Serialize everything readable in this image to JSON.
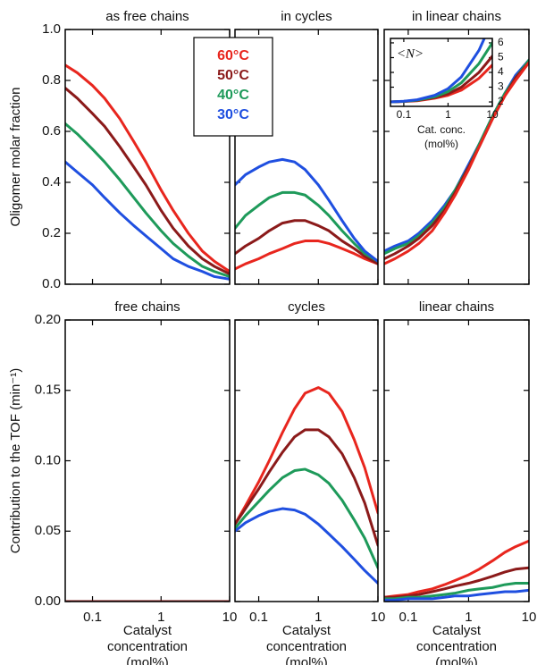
{
  "chart_data": [
    {
      "type": "line",
      "title": "as free chains",
      "ylabel": "Oligomer molar fraction",
      "x": [
        0.04,
        0.06,
        0.1,
        0.15,
        0.25,
        0.4,
        0.6,
        1,
        1.5,
        2.5,
        4,
        6,
        10
      ],
      "xscale": "log",
      "xlim": [
        0.04,
        10
      ],
      "xticks": [
        0.1,
        1,
        10
      ],
      "show_xticklabels": false,
      "ylim": [
        0,
        1
      ],
      "yticks": [
        {
          "value": 0,
          "label": "0.0"
        },
        0.2,
        0.4,
        0.6,
        0.8,
        {
          "value": 1,
          "label": "1.0"
        }
      ],
      "show_yticklabels": true,
      "series": [
        {
          "color": "#e8261e",
          "values": [
            0.86,
            0.83,
            0.78,
            0.73,
            0.65,
            0.56,
            0.48,
            0.37,
            0.29,
            0.2,
            0.13,
            0.09,
            0.05
          ]
        },
        {
          "color": "#8b1a1a",
          "values": [
            0.77,
            0.73,
            0.67,
            0.62,
            0.54,
            0.46,
            0.39,
            0.29,
            0.22,
            0.15,
            0.1,
            0.07,
            0.04
          ]
        },
        {
          "color": "#1e9a5a",
          "values": [
            0.63,
            0.59,
            0.53,
            0.48,
            0.41,
            0.34,
            0.28,
            0.21,
            0.16,
            0.11,
            0.07,
            0.05,
            0.03
          ]
        },
        {
          "color": "#1f4fe0",
          "values": [
            0.48,
            0.44,
            0.39,
            0.34,
            0.28,
            0.23,
            0.19,
            0.14,
            0.1,
            0.07,
            0.05,
            0.03,
            0.02
          ]
        }
      ]
    },
    {
      "type": "line",
      "title": "in cycles",
      "legend": "upper left",
      "x": [
        0.04,
        0.06,
        0.1,
        0.15,
        0.25,
        0.4,
        0.6,
        1,
        1.5,
        2.5,
        4,
        6,
        10
      ],
      "xscale": "log",
      "xlim": [
        0.04,
        10
      ],
      "xticks": [
        0.1,
        1,
        10
      ],
      "show_xticklabels": false,
      "ylim": [
        0,
        1
      ],
      "yticks": [
        0,
        0.2,
        0.4,
        0.6,
        0.8,
        1
      ],
      "show_yticklabels": false,
      "series": [
        {
          "name": "60°C",
          "color": "#e8261e",
          "values": [
            0.06,
            0.08,
            0.1,
            0.12,
            0.14,
            0.16,
            0.17,
            0.17,
            0.16,
            0.14,
            0.12,
            0.1,
            0.08
          ]
        },
        {
          "name": "50°C",
          "color": "#8b1a1a",
          "values": [
            0.12,
            0.15,
            0.18,
            0.21,
            0.24,
            0.25,
            0.25,
            0.23,
            0.21,
            0.17,
            0.14,
            0.11,
            0.08
          ]
        },
        {
          "name": "40°C",
          "color": "#1e9a5a",
          "values": [
            0.22,
            0.27,
            0.31,
            0.34,
            0.36,
            0.36,
            0.35,
            0.31,
            0.27,
            0.21,
            0.16,
            0.12,
            0.09
          ]
        },
        {
          "name": "30°C",
          "color": "#1f4fe0",
          "values": [
            0.39,
            0.43,
            0.46,
            0.48,
            0.49,
            0.48,
            0.45,
            0.39,
            0.33,
            0.25,
            0.18,
            0.13,
            0.09
          ]
        }
      ]
    },
    {
      "type": "line",
      "title": "in linear chains",
      "x": [
        0.04,
        0.06,
        0.1,
        0.15,
        0.25,
        0.4,
        0.6,
        1,
        1.5,
        2.5,
        4,
        6,
        10
      ],
      "xscale": "log",
      "xlim": [
        0.04,
        10
      ],
      "xticks": [
        0.1,
        1,
        10
      ],
      "show_xticklabels": false,
      "ylim": [
        0,
        1
      ],
      "yticks": [
        0,
        0.2,
        0.4,
        0.6,
        0.8,
        1
      ],
      "show_yticklabels": false,
      "series": [
        {
          "color": "#1f4fe0",
          "values": [
            0.13,
            0.15,
            0.17,
            0.2,
            0.25,
            0.31,
            0.37,
            0.47,
            0.55,
            0.66,
            0.75,
            0.82,
            0.88
          ]
        },
        {
          "color": "#1e9a5a",
          "values": [
            0.12,
            0.14,
            0.16,
            0.19,
            0.24,
            0.3,
            0.37,
            0.46,
            0.55,
            0.66,
            0.75,
            0.81,
            0.88
          ]
        },
        {
          "color": "#8b1a1a",
          "values": [
            0.1,
            0.12,
            0.15,
            0.18,
            0.23,
            0.29,
            0.36,
            0.46,
            0.54,
            0.65,
            0.74,
            0.81,
            0.87
          ]
        },
        {
          "color": "#e8261e",
          "values": [
            0.08,
            0.1,
            0.13,
            0.16,
            0.21,
            0.28,
            0.35,
            0.45,
            0.54,
            0.65,
            0.74,
            0.8,
            0.87
          ]
        }
      ]
    },
    {
      "type": "line",
      "title": "free chains",
      "ylabel": "Contribution to the TOF (min⁻¹)",
      "xlabel": [
        "Catalyst",
        "concentration",
        "(mol%)"
      ],
      "x": [
        0.04,
        0.06,
        0.1,
        0.15,
        0.25,
        0.4,
        0.6,
        1,
        1.5,
        2.5,
        4,
        6,
        10
      ],
      "xscale": "log",
      "xlim": [
        0.04,
        10
      ],
      "xticks": [
        0.1,
        1,
        10
      ],
      "show_xticklabels": true,
      "ylim": [
        0,
        0.2
      ],
      "yticks": [
        {
          "value": 0,
          "label": "0.00"
        },
        0.05,
        {
          "value": 0.1,
          "label": "0.10"
        },
        0.15,
        {
          "value": 0.2,
          "label": "0.20"
        }
      ],
      "show_yticklabels": true,
      "series": [
        {
          "color": "#1f4fe0",
          "values": [
            0,
            0,
            0,
            0,
            0,
            0,
            0,
            0,
            0,
            0,
            0,
            0,
            0
          ]
        },
        {
          "color": "#1e9a5a",
          "values": [
            0,
            0,
            0,
            0,
            0,
            0,
            0,
            0,
            0,
            0,
            0,
            0,
            0
          ]
        },
        {
          "color": "#e8261e",
          "values": [
            0,
            0,
            0,
            0,
            0,
            0,
            0,
            0,
            0,
            0,
            0,
            0,
            0
          ]
        },
        {
          "color": "#8b1a1a",
          "values": [
            0,
            0,
            0,
            0,
            0,
            0,
            0,
            0,
            0,
            0,
            0,
            0,
            0
          ]
        }
      ]
    },
    {
      "type": "line",
      "title": "cycles",
      "xlabel": [
        "Catalyst",
        "concentration",
        "(mol%)"
      ],
      "x": [
        0.04,
        0.06,
        0.1,
        0.15,
        0.25,
        0.4,
        0.6,
        1,
        1.5,
        2.5,
        4,
        6,
        10
      ],
      "xscale": "log",
      "xlim": [
        0.04,
        10
      ],
      "xticks": [
        0.1,
        1,
        10
      ],
      "show_xticklabels": true,
      "ylim": [
        0,
        0.2
      ],
      "yticks": [
        0,
        0.05,
        0.1,
        0.15,
        0.2
      ],
      "show_yticklabels": false,
      "series": [
        {
          "color": "#e8261e",
          "values": [
            0.055,
            0.068,
            0.085,
            0.1,
            0.12,
            0.137,
            0.148,
            0.152,
            0.148,
            0.135,
            0.115,
            0.095,
            0.063
          ]
        },
        {
          "color": "#8b1a1a",
          "values": [
            0.055,
            0.066,
            0.08,
            0.092,
            0.106,
            0.117,
            0.122,
            0.122,
            0.117,
            0.105,
            0.088,
            0.07,
            0.04
          ]
        },
        {
          "color": "#1e9a5a",
          "values": [
            0.052,
            0.061,
            0.071,
            0.079,
            0.088,
            0.093,
            0.094,
            0.09,
            0.084,
            0.072,
            0.058,
            0.045,
            0.024
          ]
        },
        {
          "color": "#1f4fe0",
          "values": [
            0.05,
            0.056,
            0.061,
            0.064,
            0.066,
            0.065,
            0.062,
            0.055,
            0.048,
            0.039,
            0.03,
            0.022,
            0.013
          ]
        }
      ]
    },
    {
      "type": "line",
      "title": "linear chains",
      "xlabel": [
        "Catalyst",
        "concentration",
        "(mol%)"
      ],
      "x": [
        0.04,
        0.06,
        0.1,
        0.15,
        0.25,
        0.4,
        0.6,
        1,
        1.5,
        2.5,
        4,
        6,
        10
      ],
      "xscale": "log",
      "xlim": [
        0.04,
        10
      ],
      "xticks": [
        0.1,
        1,
        10
      ],
      "show_xticklabels": true,
      "ylim": [
        0,
        0.2
      ],
      "yticks": [
        0,
        0.05,
        0.1,
        0.15,
        0.2
      ],
      "show_yticklabels": false,
      "series": [
        {
          "color": "#e8261e",
          "values": [
            0.003,
            0.004,
            0.005,
            0.007,
            0.009,
            0.012,
            0.015,
            0.019,
            0.023,
            0.029,
            0.035,
            0.039,
            0.043
          ]
        },
        {
          "color": "#8b1a1a",
          "values": [
            0.003,
            0.003,
            0.004,
            0.005,
            0.007,
            0.009,
            0.011,
            0.013,
            0.015,
            0.018,
            0.021,
            0.023,
            0.024
          ]
        },
        {
          "color": "#1e9a5a",
          "values": [
            0.002,
            0.002,
            0.003,
            0.003,
            0.004,
            0.005,
            0.006,
            0.008,
            0.009,
            0.01,
            0.012,
            0.013,
            0.013
          ]
        },
        {
          "color": "#1f4fe0",
          "values": [
            0.001,
            0.001,
            0.002,
            0.002,
            0.002,
            0.003,
            0.004,
            0.004,
            0.005,
            0.006,
            0.007,
            0.007,
            0.008
          ]
        }
      ]
    },
    {
      "type": "line",
      "ylabel": "<N>",
      "xlabel": [
        "Cat. conc.",
        "(mol%)"
      ],
      "ytick_side": "right",
      "x": [
        0.05,
        0.1,
        0.2,
        0.5,
        1,
        2,
        5,
        10
      ],
      "xscale": "log",
      "xlim": [
        0.05,
        10
      ],
      "xticks": [
        0.1,
        1,
        10
      ],
      "show_xticklabels": true,
      "ylim": [
        1.7,
        6.3
      ],
      "yticks": [
        2,
        3,
        4,
        5,
        6
      ],
      "show_yticklabels": true,
      "series": [
        {
          "color": "#e8261e",
          "values": [
            2,
            2.03,
            2.08,
            2.25,
            2.45,
            2.8,
            3.6,
            4.5
          ]
        },
        {
          "color": "#8b1a1a",
          "values": [
            2,
            2.03,
            2.1,
            2.3,
            2.55,
            3,
            4,
            5.1
          ]
        },
        {
          "color": "#1e9a5a",
          "values": [
            2,
            2.04,
            2.12,
            2.35,
            2.7,
            3.3,
            4.6,
            6
          ]
        },
        {
          "color": "#1f4fe0",
          "values": [
            2,
            2.05,
            2.15,
            2.45,
            2.9,
            3.7,
            5.5,
            7.5
          ]
        }
      ]
    }
  ]
}
